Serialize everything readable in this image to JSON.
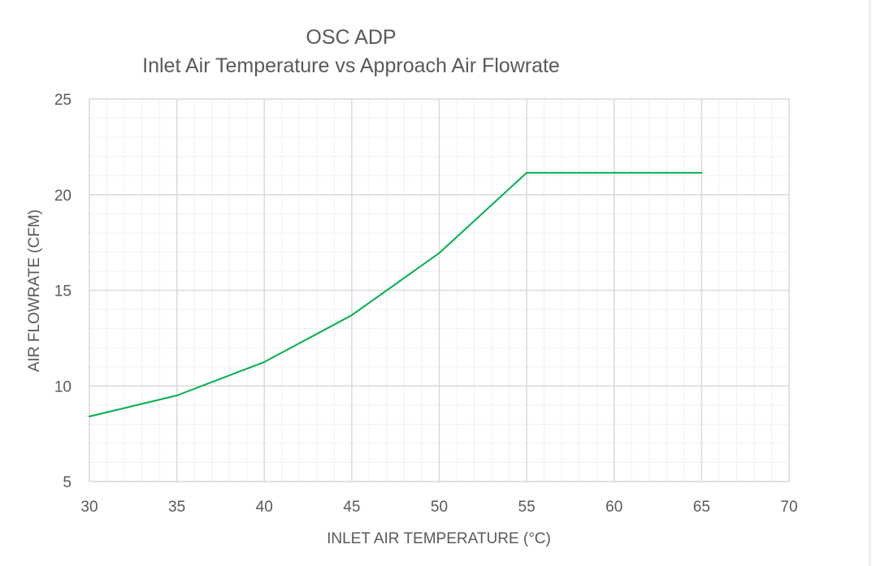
{
  "chart_data": {
    "type": "line",
    "title": "OSC ADP",
    "subtitle": "Inlet Air Temperature vs Approach Air Flowrate",
    "xlabel": "INLET AIR TEMPERATURE (°C)",
    "ylabel": "AIR FLOWRATE (CFM)",
    "xlim": [
      30,
      70
    ],
    "ylim": [
      5,
      25
    ],
    "x_ticks": [
      30,
      35,
      40,
      45,
      50,
      55,
      60,
      65,
      70
    ],
    "y_ticks": [
      5,
      10,
      15,
      20,
      25
    ],
    "grid": true,
    "minor_grid": true,
    "legend": "none",
    "series": [
      {
        "color": "#00b050",
        "x": [
          30,
          35,
          40,
          45,
          50,
          55,
          60,
          65
        ],
        "values": [
          8.4,
          9.5,
          11.25,
          13.7,
          16.95,
          21.15,
          21.15,
          21.15
        ]
      }
    ]
  }
}
